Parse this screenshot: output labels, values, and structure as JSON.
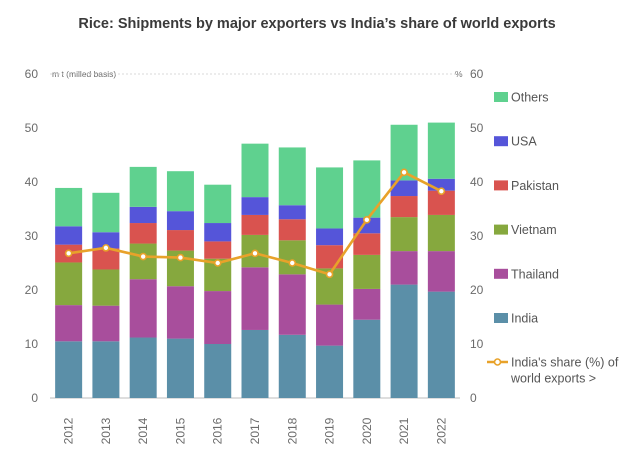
{
  "chart_data": {
    "type": "bar",
    "stacked": true,
    "title": "Rice: Shipments by major exporters vs India’s share of world exports",
    "left_axis_unit": "m t (milled basis)",
    "right_axis_unit": "%",
    "categories": [
      "2012",
      "2013",
      "2014",
      "2015",
      "2016",
      "2017",
      "2018",
      "2019",
      "2020",
      "2021",
      "2022"
    ],
    "ylim": [
      0,
      60
    ],
    "yticks": [
      0,
      10,
      20,
      30,
      40,
      50,
      60
    ],
    "y2lim": [
      0,
      60
    ],
    "y2ticks": [
      0,
      10,
      20,
      30,
      40,
      50,
      60
    ],
    "grid": false,
    "legend_position": "right",
    "series": [
      {
        "name": "India",
        "color": "#5b8fa8",
        "values": [
          10.5,
          10.5,
          11.2,
          11.0,
          10.0,
          12.6,
          11.7,
          9.7,
          14.5,
          21.0,
          19.7
        ]
      },
      {
        "name": "Thailand",
        "color": "#a84e9c",
        "values": [
          6.7,
          6.6,
          10.8,
          9.7,
          9.8,
          11.6,
          11.2,
          7.6,
          5.7,
          6.2,
          7.5
        ]
      },
      {
        "name": "Vietnam",
        "color": "#86a83e",
        "values": [
          7.9,
          6.7,
          6.6,
          6.6,
          6.0,
          6.0,
          6.3,
          6.7,
          6.3,
          6.3,
          6.7
        ]
      },
      {
        "name": "Pakistan",
        "color": "#d9534f",
        "values": [
          3.3,
          3.9,
          3.8,
          3.8,
          3.2,
          3.7,
          3.9,
          4.3,
          4.0,
          3.9,
          4.5
        ]
      },
      {
        "name": "USA",
        "color": "#5555d9",
        "values": [
          3.4,
          3.0,
          3.0,
          3.5,
          3.4,
          3.3,
          2.6,
          3.1,
          2.9,
          2.9,
          2.2
        ]
      },
      {
        "name": "Others",
        "color": "#5fd18f",
        "values": [
          7.1,
          7.3,
          7.4,
          7.4,
          7.1,
          9.9,
          10.7,
          11.3,
          10.6,
          10.3,
          10.4
        ]
      }
    ],
    "line_series": {
      "name": "India's share (%) of world exports >",
      "name_lines": [
        "India's share (%) of",
        "world exports >"
      ],
      "color": "#e8a22a",
      "axis": "right",
      "values": [
        26.8,
        27.8,
        26.2,
        26.0,
        25.0,
        26.8,
        25.0,
        22.9,
        33.0,
        41.8,
        38.3
      ]
    }
  }
}
